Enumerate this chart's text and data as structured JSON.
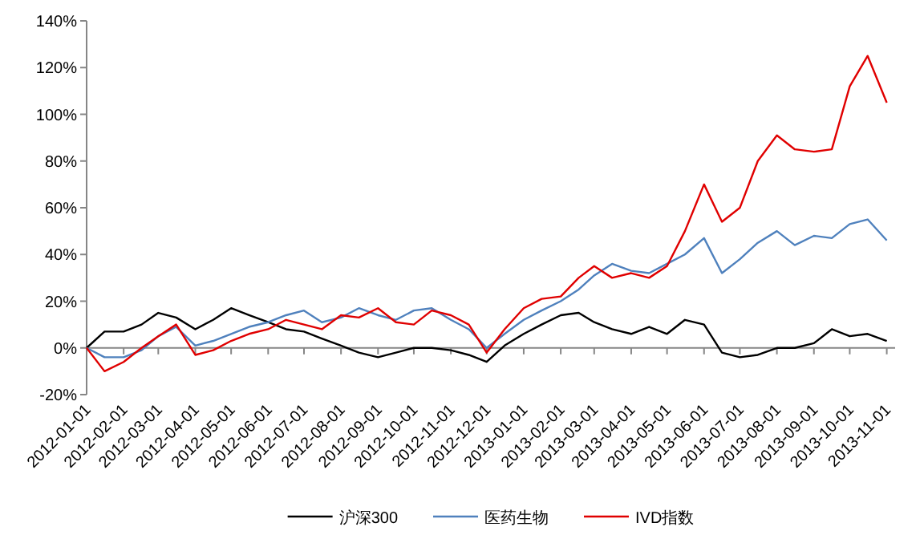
{
  "chart_data": {
    "type": "line",
    "legend": "bottom",
    "marker": "none",
    "line_style": "solid",
    "x": [
      "2012-01-01",
      "2012-01-16",
      "2012-02-01",
      "2012-02-16",
      "2012-03-01",
      "2012-03-16",
      "2012-04-01",
      "2012-04-16",
      "2012-05-01",
      "2012-05-16",
      "2012-06-01",
      "2012-06-16",
      "2012-07-01",
      "2012-07-16",
      "2012-08-01",
      "2012-08-16",
      "2012-09-01",
      "2012-09-16",
      "2012-10-01",
      "2012-10-16",
      "2012-11-01",
      "2012-11-16",
      "2012-12-01",
      "2012-12-16",
      "2013-01-01",
      "2013-01-16",
      "2013-02-01",
      "2013-02-16",
      "2013-03-01",
      "2013-03-16",
      "2013-04-01",
      "2013-04-16",
      "2013-05-01",
      "2013-05-16",
      "2013-06-01",
      "2013-06-16",
      "2013-07-01",
      "2013-07-16",
      "2013-08-01",
      "2013-08-16",
      "2013-09-01",
      "2013-09-16",
      "2013-10-01",
      "2013-10-16",
      "2013-11-01"
    ],
    "xlim": [
      "2012-01-01",
      "2013-11-08"
    ],
    "xticks": [
      "2012-01-01",
      "2012-02-01",
      "2012-03-01",
      "2012-04-01",
      "2012-05-01",
      "2012-06-01",
      "2012-07-01",
      "2012-08-01",
      "2012-09-01",
      "2012-10-01",
      "2012-11-01",
      "2012-12-01",
      "2013-01-01",
      "2013-02-01",
      "2013-03-01",
      "2013-04-01",
      "2013-05-01",
      "2013-06-01",
      "2013-07-01",
      "2013-08-01",
      "2013-09-01",
      "2013-10-01",
      "2013-11-01"
    ],
    "ylim": [
      -20,
      140
    ],
    "yticks": [
      {
        "value": -20,
        "label": "-20%"
      },
      {
        "value": 0,
        "label": "0%"
      },
      {
        "value": 20,
        "label": "20%"
      },
      {
        "value": 40,
        "label": "40%"
      },
      {
        "value": 60,
        "label": "60%"
      },
      {
        "value": 80,
        "label": "80%"
      },
      {
        "value": 100,
        "label": "100%"
      },
      {
        "value": 120,
        "label": "120%"
      },
      {
        "value": 140,
        "label": "140%"
      }
    ],
    "series": [
      {
        "name": "沪深300",
        "color": "#000000",
        "values": [
          0,
          7,
          7,
          10,
          15,
          13,
          8,
          12,
          17,
          14,
          11,
          8,
          7,
          4,
          1,
          -2,
          -4,
          -2,
          0,
          0,
          -1,
          -3,
          -6,
          1,
          6,
          10,
          14,
          15,
          11,
          8,
          6,
          9,
          6,
          12,
          10,
          -2,
          -4,
          -3,
          0,
          0,
          2,
          8,
          5,
          6,
          3
        ]
      },
      {
        "name": "医药生物",
        "color": "#4f81bd",
        "values": [
          0,
          -4,
          -4,
          -1,
          5,
          9,
          1,
          3,
          6,
          9,
          11,
          14,
          16,
          11,
          13,
          17,
          14,
          12,
          16,
          17,
          12,
          8,
          0,
          6,
          12,
          16,
          20,
          25,
          31,
          36,
          33,
          32,
          36,
          40,
          47,
          32,
          38,
          45,
          50,
          44,
          48,
          47,
          53,
          55,
          46
        ]
      },
      {
        "name": "IVD指数",
        "color": "#e00000",
        "values": [
          0,
          -10,
          -6,
          0,
          5,
          10,
          -3,
          -1,
          3,
          6,
          8,
          12,
          10,
          8,
          14,
          13,
          17,
          11,
          10,
          16,
          14,
          10,
          -2,
          8,
          17,
          21,
          22,
          30,
          35,
          30,
          32,
          30,
          35,
          50,
          70,
          54,
          60,
          80,
          91,
          85,
          84,
          85,
          112,
          125,
          105
        ]
      }
    ]
  }
}
